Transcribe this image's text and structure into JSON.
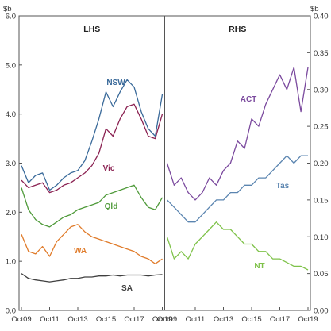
{
  "chart_data": [
    {
      "type": "line",
      "panel_label": "LHS",
      "unit_label": "$b",
      "ylim": [
        0,
        6
      ],
      "yticks": [
        "0.0",
        "1.0",
        "2.0",
        "3.0",
        "4.0",
        "5.0",
        "6.0"
      ],
      "x_ticks": [
        "Oct09",
        "Oct11",
        "Oct13",
        "Oct15",
        "Oct17",
        "Oct19"
      ],
      "x_range": [
        "Oct09",
        "Oct19"
      ],
      "series": [
        {
          "name": "NSW",
          "color": "#3a6a9a",
          "x": [
            "Oct09",
            "Apr10",
            "Oct10",
            "Apr11",
            "Oct11",
            "Apr12",
            "Oct12",
            "Apr13",
            "Oct13",
            "Apr14",
            "Oct14",
            "Apr15",
            "Oct15",
            "Apr16",
            "Oct16",
            "Apr17",
            "Oct17",
            "Apr18",
            "Oct18",
            "Apr19",
            "Oct19"
          ],
          "y": [
            2.95,
            2.6,
            2.75,
            2.8,
            2.45,
            2.55,
            2.7,
            2.8,
            2.85,
            3.05,
            3.45,
            3.9,
            4.45,
            4.15,
            4.45,
            4.7,
            4.55,
            4.05,
            3.7,
            3.55,
            4.4
          ]
        },
        {
          "name": "Vic",
          "color": "#8b2252",
          "x": [
            "Oct09",
            "Apr10",
            "Oct10",
            "Apr11",
            "Oct11",
            "Apr12",
            "Oct12",
            "Apr13",
            "Oct13",
            "Apr14",
            "Oct14",
            "Apr15",
            "Oct15",
            "Apr16",
            "Oct16",
            "Apr17",
            "Oct17",
            "Apr18",
            "Oct18",
            "Apr19",
            "Oct19"
          ],
          "y": [
            2.65,
            2.5,
            2.55,
            2.6,
            2.4,
            2.45,
            2.55,
            2.6,
            2.7,
            2.8,
            2.95,
            3.2,
            3.7,
            3.55,
            3.9,
            4.15,
            4.2,
            3.9,
            3.55,
            3.5,
            4.0
          ]
        },
        {
          "name": "Qld",
          "color": "#4f9a3a",
          "x": [
            "Oct09",
            "Apr10",
            "Oct10",
            "Apr11",
            "Oct11",
            "Apr12",
            "Oct12",
            "Apr13",
            "Oct13",
            "Apr14",
            "Oct14",
            "Apr15",
            "Oct15",
            "Apr16",
            "Oct16",
            "Apr17",
            "Oct17",
            "Apr18",
            "Oct18",
            "Apr19",
            "Oct19"
          ],
          "y": [
            2.5,
            2.05,
            1.85,
            1.75,
            1.7,
            1.8,
            1.9,
            1.95,
            2.05,
            2.1,
            2.15,
            2.2,
            2.35,
            2.4,
            2.45,
            2.5,
            2.55,
            2.3,
            2.1,
            2.05,
            2.3
          ]
        },
        {
          "name": "WA",
          "color": "#e07b2a",
          "x": [
            "Oct09",
            "Apr10",
            "Oct10",
            "Apr11",
            "Oct11",
            "Apr12",
            "Oct12",
            "Apr13",
            "Oct13",
            "Apr14",
            "Oct14",
            "Apr15",
            "Oct15",
            "Apr16",
            "Oct16",
            "Apr17",
            "Oct17",
            "Apr18",
            "Oct18",
            "Apr19",
            "Oct19"
          ],
          "y": [
            1.55,
            1.2,
            1.15,
            1.3,
            1.1,
            1.4,
            1.55,
            1.7,
            1.75,
            1.6,
            1.5,
            1.45,
            1.4,
            1.35,
            1.3,
            1.25,
            1.2,
            1.1,
            1.05,
            0.95,
            1.05
          ]
        },
        {
          "name": "SA",
          "color": "#404040",
          "x": [
            "Oct09",
            "Apr10",
            "Oct10",
            "Apr11",
            "Oct11",
            "Apr12",
            "Oct12",
            "Apr13",
            "Oct13",
            "Apr14",
            "Oct14",
            "Apr15",
            "Oct15",
            "Apr16",
            "Oct16",
            "Apr17",
            "Oct17",
            "Apr18",
            "Oct18",
            "Apr19",
            "Oct19"
          ],
          "y": [
            0.75,
            0.65,
            0.62,
            0.6,
            0.58,
            0.6,
            0.62,
            0.65,
            0.65,
            0.68,
            0.68,
            0.7,
            0.7,
            0.72,
            0.7,
            0.72,
            0.72,
            0.72,
            0.7,
            0.72,
            0.73
          ]
        }
      ]
    },
    {
      "type": "line",
      "panel_label": "RHS",
      "unit_label": "$b",
      "ylim": [
        0,
        0.4
      ],
      "yticks": [
        "0.00",
        "0.05",
        "0.10",
        "0.15",
        "0.20",
        "0.25",
        "0.30",
        "0.35",
        "0.40"
      ],
      "x_ticks": [
        "Oct09",
        "Oct11",
        "Oct13",
        "Oct15",
        "Oct17",
        "Oct19"
      ],
      "x_range": [
        "Oct09",
        "Oct19"
      ],
      "series": [
        {
          "name": "ACT",
          "color": "#7b4a9e",
          "x": [
            "Oct09",
            "Apr10",
            "Oct10",
            "Apr11",
            "Oct11",
            "Apr12",
            "Oct12",
            "Apr13",
            "Oct13",
            "Apr14",
            "Oct14",
            "Apr15",
            "Oct15",
            "Apr16",
            "Oct16",
            "Apr17",
            "Oct17",
            "Apr18",
            "Oct18",
            "Apr19",
            "Oct19"
          ],
          "y": [
            0.2,
            0.17,
            0.18,
            0.16,
            0.15,
            0.16,
            0.18,
            0.17,
            0.19,
            0.2,
            0.23,
            0.22,
            0.26,
            0.25,
            0.28,
            0.3,
            0.32,
            0.3,
            0.33,
            0.27,
            0.33
          ]
        },
        {
          "name": "Tas",
          "color": "#5b85b0",
          "x": [
            "Oct09",
            "Apr10",
            "Oct10",
            "Apr11",
            "Oct11",
            "Apr12",
            "Oct12",
            "Apr13",
            "Oct13",
            "Apr14",
            "Oct14",
            "Apr15",
            "Oct15",
            "Apr16",
            "Oct16",
            "Apr17",
            "Oct17",
            "Apr18",
            "Oct18",
            "Apr19",
            "Oct19"
          ],
          "y": [
            0.15,
            0.14,
            0.13,
            0.12,
            0.12,
            0.13,
            0.14,
            0.15,
            0.15,
            0.16,
            0.16,
            0.17,
            0.17,
            0.18,
            0.18,
            0.19,
            0.2,
            0.21,
            0.2,
            0.21,
            0.21
          ]
        },
        {
          "name": "NT",
          "color": "#7fc24a",
          "x": [
            "Oct09",
            "Apr10",
            "Oct10",
            "Apr11",
            "Oct11",
            "Apr12",
            "Oct12",
            "Apr13",
            "Oct13",
            "Apr14",
            "Oct14",
            "Apr15",
            "Oct15",
            "Apr16",
            "Oct16",
            "Apr17",
            "Oct17",
            "Apr18",
            "Oct18",
            "Apr19",
            "Oct19"
          ],
          "y": [
            0.1,
            0.07,
            0.08,
            0.07,
            0.09,
            0.1,
            0.11,
            0.12,
            0.11,
            0.11,
            0.1,
            0.09,
            0.09,
            0.08,
            0.08,
            0.07,
            0.07,
            0.065,
            0.06,
            0.06,
            0.055
          ]
        }
      ]
    }
  ]
}
